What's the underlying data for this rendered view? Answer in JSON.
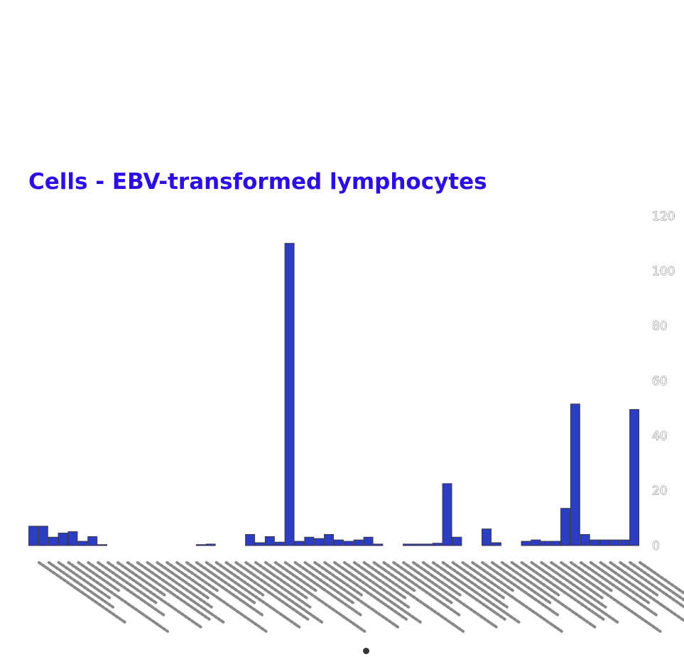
{
  "chart_data": {
    "type": "bar",
    "title": "Cells - EBV-transformed lymphocytes",
    "xlabel": "",
    "ylabel": "",
    "ylim": [
      0,
      120
    ],
    "yticks": [
      "0",
      "20",
      "40",
      "60",
      "80",
      "100",
      "120"
    ],
    "y_axis_side": "right",
    "grid": false,
    "legend": "none",
    "bar_color": "#2b3ec3",
    "title_color": "#2b0ee6",
    "values": [
      7,
      7,
      3,
      4.5,
      5,
      1.5,
      3.2,
      0.3,
      0,
      0,
      0,
      0,
      0,
      0,
      0,
      0,
      0,
      0.3,
      0.5,
      0,
      0,
      0,
      4,
      1,
      3.2,
      1.2,
      110,
      1.5,
      3,
      2.5,
      4,
      2,
      1.5,
      2,
      3,
      0.5,
      0,
      0,
      0.5,
      0.5,
      0.5,
      0.8,
      22.5,
      3,
      0,
      0,
      6,
      1,
      0,
      0,
      1.5,
      2,
      1.5,
      1.5,
      13.5,
      51.5,
      4,
      2,
      2,
      2,
      2,
      49.5
    ]
  }
}
